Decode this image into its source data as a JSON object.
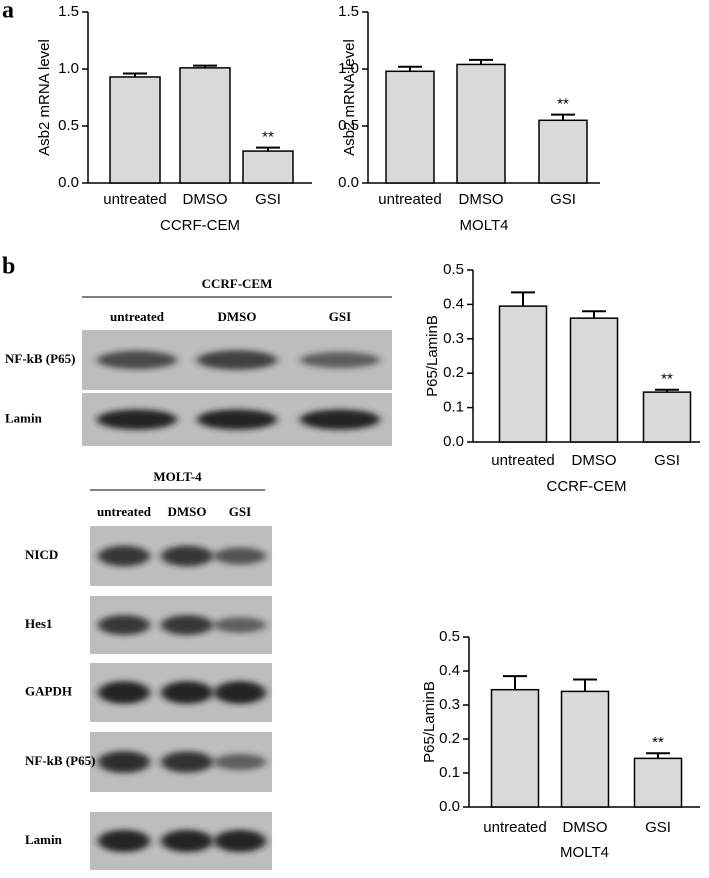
{
  "panel_labels": [
    "a",
    "b"
  ],
  "chart_data": [
    {
      "type": "bar",
      "ylabel": "Asb2 mRNA level",
      "xlabel": "CCRF-CEM",
      "categories": [
        "untreated",
        "DMSO",
        "GSI"
      ],
      "values": [
        0.93,
        1.01,
        0.28
      ],
      "errors": [
        0.03,
        0.02,
        0.03
      ],
      "value_annotations": [
        null,
        null,
        "**"
      ],
      "color": "#d9d9d9",
      "ylim": [
        0,
        1.5
      ],
      "yticks": [
        {
          "value": 0,
          "label": "0.0"
        },
        0.5,
        {
          "value": 1,
          "label": "1.0"
        },
        1.5
      ]
    },
    {
      "type": "bar",
      "ylabel": "Asb2 mRNA level",
      "xlabel": "MOLT4",
      "categories": [
        "untreated",
        "DMSO",
        "GSI"
      ],
      "values": [
        0.98,
        1.04,
        0.55
      ],
      "errors": [
        0.04,
        0.04,
        0.05
      ],
      "value_annotations": [
        null,
        null,
        "**"
      ],
      "color": "#d9d9d9",
      "ylim": [
        0,
        1.5
      ],
      "yticks": [
        {
          "value": 0,
          "label": "0.0"
        },
        0.5,
        {
          "value": 1,
          "label": "1.0"
        },
        1.5
      ]
    },
    {
      "type": "bar",
      "ylabel": "P65/LaminB",
      "xlabel": "CCRF-CEM",
      "categories": [
        "untreated",
        "DMSO",
        "GSI"
      ],
      "values": [
        0.395,
        0.36,
        0.145
      ],
      "errors": [
        0.04,
        0.02,
        0.007
      ],
      "value_annotations": [
        null,
        null,
        "**"
      ],
      "color": "#d9d9d9",
      "ylim": [
        0,
        0.5
      ],
      "yticks": [
        {
          "value": 0,
          "label": "0.0"
        },
        0.1,
        0.2,
        0.3,
        0.4,
        0.5
      ]
    },
    {
      "type": "bar",
      "ylabel": "P65/LaminB",
      "xlabel": "MOLT4",
      "categories": [
        "untreated",
        "DMSO",
        "GSI"
      ],
      "values": [
        0.345,
        0.34,
        0.143
      ],
      "errors": [
        0.04,
        0.035,
        0.015
      ],
      "value_annotations": [
        null,
        null,
        "**"
      ],
      "color": "#d9d9d9",
      "ylim": [
        0,
        0.5
      ],
      "yticks": [
        {
          "value": 0,
          "label": "0.0"
        },
        0.1,
        0.2,
        0.3,
        0.4,
        0.5
      ]
    }
  ],
  "blots": [
    {
      "title": "CCRF-CEM",
      "lanes": [
        "untreated",
        "DMSO",
        "GSI"
      ],
      "rows": [
        "NF-kB (P65)",
        "Lamin"
      ]
    },
    {
      "title": "MOLT-4",
      "lanes": [
        "untreated",
        "DMSO",
        "GSI"
      ],
      "rows": [
        "NICD",
        "Hes1",
        "GAPDH",
        "NF-kB (P65)",
        "Lamin"
      ]
    }
  ]
}
